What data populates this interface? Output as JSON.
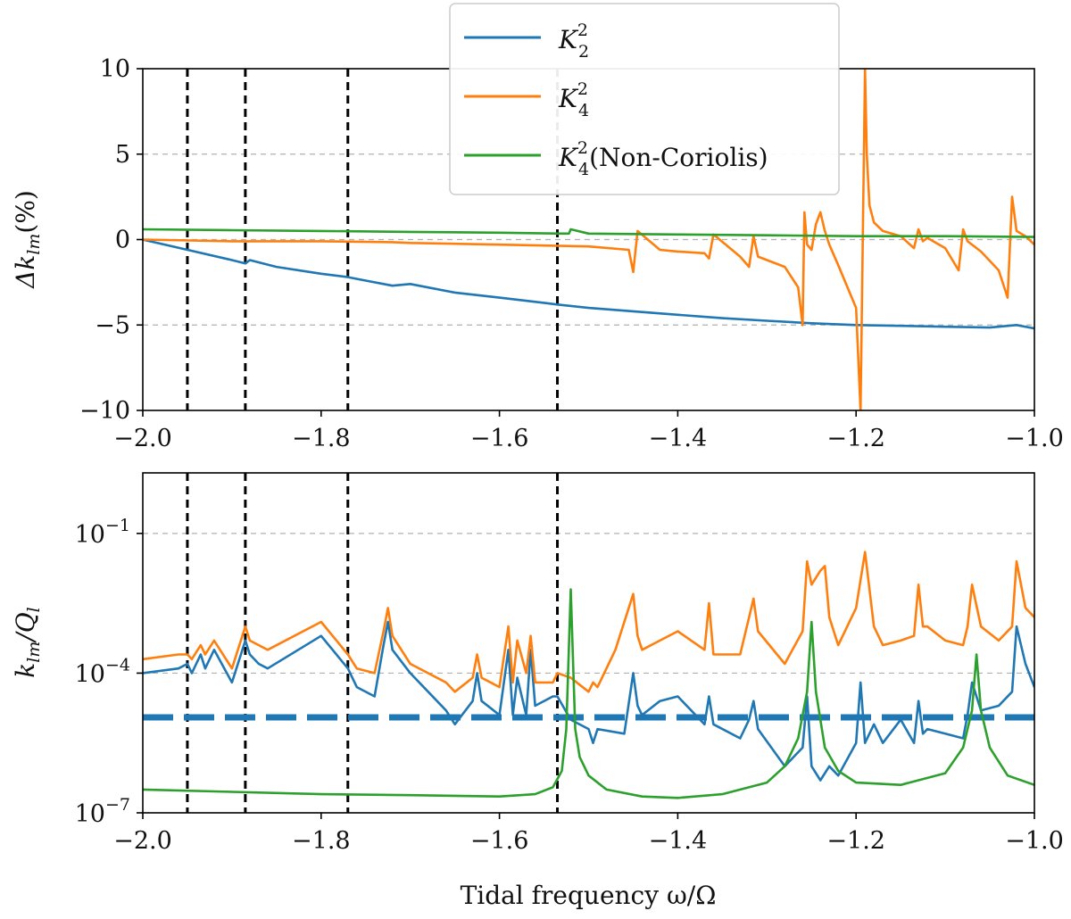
{
  "chart_data": [
    {
      "type": "line",
      "panel": "top",
      "ylabel_main": "Δk",
      "ylabel_sub": "lm",
      "ylabel_suffix": "(%)",
      "xlim": [
        -2.0,
        -1.0
      ],
      "ylim": [
        -10,
        10
      ],
      "xticks": [
        -2.0,
        -1.8,
        -1.6,
        -1.4,
        -1.2,
        -1.0
      ],
      "xtick_labels": [
        "−2.0",
        "−1.8",
        "−1.6",
        "−1.4",
        "−1.2",
        "−1.0"
      ],
      "yticks": [
        -10,
        -5,
        0,
        5,
        10
      ],
      "ytick_labels": [
        "−10",
        "−5",
        "0",
        "5",
        "10"
      ],
      "gridlines_y": [
        -5,
        0,
        5
      ],
      "vlines_x": [
        -1.95,
        -1.885,
        -1.77,
        -1.535
      ],
      "series": [
        {
          "name": "K22",
          "color": "#1f77b4",
          "x": [
            -2.0,
            -1.95,
            -1.9,
            -1.885,
            -1.88,
            -1.85,
            -1.8,
            -1.77,
            -1.75,
            -1.72,
            -1.7,
            -1.65,
            -1.6,
            -1.55,
            -1.535,
            -1.5,
            -1.45,
            -1.4,
            -1.35,
            -1.3,
            -1.25,
            -1.2,
            -1.15,
            -1.1,
            -1.05,
            -1.02,
            -1.0
          ],
          "y": [
            0.0,
            -0.6,
            -1.2,
            -1.4,
            -1.2,
            -1.6,
            -2.0,
            -2.2,
            -2.4,
            -2.7,
            -2.6,
            -3.1,
            -3.4,
            -3.7,
            -3.8,
            -4.0,
            -4.2,
            -4.4,
            -4.6,
            -4.75,
            -4.9,
            -5.0,
            -5.05,
            -5.1,
            -5.15,
            -5.0,
            -5.2
          ]
        },
        {
          "name": "K42",
          "color": "#ff7f0e",
          "x": [
            -2.0,
            -1.9,
            -1.8,
            -1.72,
            -1.7,
            -1.6,
            -1.5,
            -1.455,
            -1.45,
            -1.445,
            -1.42,
            -1.4,
            -1.37,
            -1.365,
            -1.36,
            -1.33,
            -1.32,
            -1.315,
            -1.31,
            -1.28,
            -1.265,
            -1.26,
            -1.258,
            -1.255,
            -1.25,
            -1.245,
            -1.24,
            -1.235,
            -1.23,
            -1.22,
            -1.2,
            -1.195,
            -1.19,
            -1.188,
            -1.185,
            -1.18,
            -1.17,
            -1.15,
            -1.135,
            -1.13,
            -1.125,
            -1.12,
            -1.1,
            -1.085,
            -1.08,
            -1.075,
            -1.06,
            -1.04,
            -1.03,
            -1.025,
            -1.02,
            -1.01,
            -1.0
          ],
          "y": [
            0.0,
            -0.1,
            -0.1,
            -0.15,
            -0.2,
            -0.3,
            -0.4,
            -0.6,
            -1.9,
            0.5,
            -0.6,
            -0.7,
            -0.8,
            -1.1,
            0.3,
            -1.0,
            -1.6,
            0.2,
            -1.0,
            -1.6,
            -2.8,
            -5.0,
            1.6,
            -0.3,
            -0.6,
            0.9,
            1.6,
            0.5,
            -0.3,
            -1.5,
            -4.0,
            -10,
            10,
            5.0,
            2.0,
            1.0,
            0.5,
            0.2,
            -0.5,
            0.6,
            -0.1,
            0.1,
            -0.5,
            -1.8,
            0.6,
            -0.1,
            -0.7,
            -1.8,
            -3.4,
            2.5,
            0.5,
            0.2,
            -0.3
          ]
        },
        {
          "name": "K42 Non-Coriolis",
          "color": "#2ca02c",
          "x": [
            -2.0,
            -1.9,
            -1.8,
            -1.7,
            -1.6,
            -1.53,
            -1.522,
            -1.52,
            -1.5,
            -1.4,
            -1.3,
            -1.2,
            -1.1,
            -1.0
          ],
          "y": [
            0.6,
            0.55,
            0.5,
            0.45,
            0.4,
            0.35,
            0.35,
            0.6,
            0.35,
            0.3,
            0.25,
            0.2,
            0.2,
            0.15
          ]
        }
      ]
    },
    {
      "type": "line",
      "panel": "bottom",
      "yscale": "log",
      "ylabel_main": "k",
      "ylabel_sub": "lm",
      "ylabel_slash": "/Q",
      "ylabel_sub2": "l",
      "xlabel": "Tidal frequency ω/Ω",
      "xlim": [
        -2.0,
        -1.0
      ],
      "ylim_log10": [
        -7,
        0.3
      ],
      "xticks": [
        -2.0,
        -1.8,
        -1.6,
        -1.4,
        -1.2,
        -1.0
      ],
      "xtick_labels": [
        "−2.0",
        "−1.8",
        "−1.6",
        "−1.4",
        "−1.2",
        "−1.0"
      ],
      "yticks_log10": [
        -7,
        -4,
        -1
      ],
      "ytick_base": "10",
      "ytick_exponents": [
        "−7",
        "−4",
        "−1"
      ],
      "gridlines_y_log10": [
        -4,
        -1
      ],
      "vlines_x": [
        -1.95,
        -1.885,
        -1.77,
        -1.535
      ],
      "hline_log10": -4.95,
      "series": [
        {
          "name": "K22",
          "color": "#1f77b4",
          "x": [
            -2.0,
            -1.96,
            -1.95,
            -1.945,
            -1.935,
            -1.93,
            -1.92,
            -1.9,
            -1.885,
            -1.88,
            -1.87,
            -1.86,
            -1.8,
            -1.77,
            -1.76,
            -1.74,
            -1.73,
            -1.725,
            -1.72,
            -1.7,
            -1.66,
            -1.65,
            -1.63,
            -1.625,
            -1.62,
            -1.6,
            -1.59,
            -1.585,
            -1.58,
            -1.57,
            -1.565,
            -1.56,
            -1.54,
            -1.535,
            -1.52,
            -1.5,
            -1.495,
            -1.49,
            -1.46,
            -1.45,
            -1.445,
            -1.44,
            -1.42,
            -1.4,
            -1.37,
            -1.365,
            -1.36,
            -1.33,
            -1.32,
            -1.315,
            -1.31,
            -1.28,
            -1.26,
            -1.255,
            -1.25,
            -1.24,
            -1.23,
            -1.22,
            -1.2,
            -1.195,
            -1.19,
            -1.18,
            -1.17,
            -1.15,
            -1.135,
            -1.13,
            -1.125,
            -1.12,
            -1.1,
            -1.08,
            -1.075,
            -1.07,
            -1.06,
            -1.04,
            -1.025,
            -1.02,
            -1.01,
            -1.0
          ],
          "y": [
            -4.0,
            -3.9,
            -3.8,
            -4.0,
            -3.6,
            -3.9,
            -3.5,
            -4.2,
            -3.3,
            -3.6,
            -3.8,
            -3.9,
            -3.2,
            -3.9,
            -4.3,
            -4.5,
            -3.4,
            -2.9,
            -3.5,
            -4.0,
            -4.8,
            -5.1,
            -4.6,
            -4.0,
            -4.6,
            -4.9,
            -3.5,
            -4.9,
            -4.1,
            -4.9,
            -3.5,
            -4.7,
            -4.5,
            -4.5,
            -5.0,
            -5.2,
            -5.5,
            -5.2,
            -5.3,
            -4.0,
            -4.7,
            -4.9,
            -4.6,
            -4.5,
            -5.1,
            -4.5,
            -5.1,
            -5.4,
            -5.0,
            -4.6,
            -5.2,
            -6.0,
            -5.6,
            -4.5,
            -6.0,
            -6.3,
            -6.0,
            -6.2,
            -5.5,
            -4.2,
            -5.5,
            -5.1,
            -5.5,
            -5.0,
            -5.5,
            -4.6,
            -5.3,
            -5.2,
            -5.3,
            -5.4,
            -4.9,
            -4.2,
            -4.8,
            -4.7,
            -4.4,
            -3.0,
            -3.8,
            -4.3
          ]
        },
        {
          "name": "K42",
          "color": "#ff7f0e",
          "x": [
            -2.0,
            -1.96,
            -1.95,
            -1.945,
            -1.935,
            -1.93,
            -1.92,
            -1.9,
            -1.885,
            -1.88,
            -1.87,
            -1.86,
            -1.8,
            -1.77,
            -1.76,
            -1.74,
            -1.73,
            -1.725,
            -1.72,
            -1.7,
            -1.66,
            -1.65,
            -1.63,
            -1.625,
            -1.62,
            -1.6,
            -1.59,
            -1.585,
            -1.58,
            -1.57,
            -1.565,
            -1.56,
            -1.54,
            -1.535,
            -1.52,
            -1.5,
            -1.495,
            -1.49,
            -1.47,
            -1.45,
            -1.445,
            -1.44,
            -1.42,
            -1.4,
            -1.37,
            -1.365,
            -1.36,
            -1.33,
            -1.32,
            -1.315,
            -1.31,
            -1.28,
            -1.26,
            -1.255,
            -1.25,
            -1.24,
            -1.235,
            -1.23,
            -1.22,
            -1.2,
            -1.19,
            -1.18,
            -1.17,
            -1.15,
            -1.135,
            -1.13,
            -1.125,
            -1.12,
            -1.1,
            -1.08,
            -1.075,
            -1.07,
            -1.06,
            -1.04,
            -1.025,
            -1.02,
            -1.01,
            -1.0
          ],
          "y": [
            -3.7,
            -3.6,
            -3.6,
            -3.7,
            -3.4,
            -3.6,
            -3.3,
            -3.9,
            -3.0,
            -3.3,
            -3.4,
            -3.5,
            -2.9,
            -3.6,
            -3.9,
            -4.0,
            -3.1,
            -2.6,
            -3.2,
            -3.8,
            -4.2,
            -4.4,
            -4.1,
            -3.6,
            -4.1,
            -4.3,
            -3.0,
            -4.2,
            -3.3,
            -4.0,
            -3.2,
            -4.2,
            -4.2,
            -4.0,
            -4.1,
            -4.4,
            -4.2,
            -4.3,
            -3.5,
            -2.3,
            -3.2,
            -3.5,
            -3.3,
            -3.1,
            -3.5,
            -2.5,
            -3.6,
            -3.6,
            -2.8,
            -2.4,
            -3.1,
            -3.8,
            -3.1,
            -1.6,
            -2.1,
            -1.8,
            -1.7,
            -2.8,
            -3.4,
            -2.6,
            -1.4,
            -3.0,
            -3.4,
            -3.3,
            -3.2,
            -2.1,
            -3.0,
            -3.0,
            -3.3,
            -3.4,
            -3.0,
            -2.1,
            -3.0,
            -3.3,
            -3.0,
            -1.6,
            -2.6,
            -2.8
          ]
        },
        {
          "name": "K42 Non-Coriolis",
          "color": "#2ca02c",
          "x": [
            -2.0,
            -1.9,
            -1.8,
            -1.7,
            -1.6,
            -1.56,
            -1.54,
            -1.53,
            -1.525,
            -1.52,
            -1.515,
            -1.51,
            -1.5,
            -1.48,
            -1.44,
            -1.4,
            -1.35,
            -1.3,
            -1.28,
            -1.265,
            -1.255,
            -1.25,
            -1.245,
            -1.235,
            -1.22,
            -1.2,
            -1.15,
            -1.1,
            -1.08,
            -1.07,
            -1.065,
            -1.06,
            -1.05,
            -1.03,
            -1.0
          ],
          "y": [
            -6.5,
            -6.55,
            -6.6,
            -6.62,
            -6.65,
            -6.6,
            -6.45,
            -6.1,
            -5.2,
            -2.2,
            -5.2,
            -5.8,
            -6.2,
            -6.5,
            -6.65,
            -6.68,
            -6.6,
            -6.35,
            -6.0,
            -5.4,
            -4.4,
            -2.9,
            -4.4,
            -5.6,
            -6.1,
            -6.35,
            -6.4,
            -6.15,
            -5.6,
            -4.8,
            -3.6,
            -4.8,
            -5.6,
            -6.2,
            -6.4
          ]
        }
      ]
    }
  ],
  "legend": {
    "location": "upper-center",
    "items": [
      {
        "symbol": "K",
        "sup": "2",
        "sub": "2",
        "suffix": "",
        "color": "#1f77b4"
      },
      {
        "symbol": "K",
        "sup": "2",
        "sub": "4",
        "suffix": "",
        "color": "#ff7f0e"
      },
      {
        "symbol": "K",
        "sup": "2",
        "sub": "4",
        "suffix": "(Non-Coriolis)",
        "color": "#2ca02c"
      }
    ]
  }
}
